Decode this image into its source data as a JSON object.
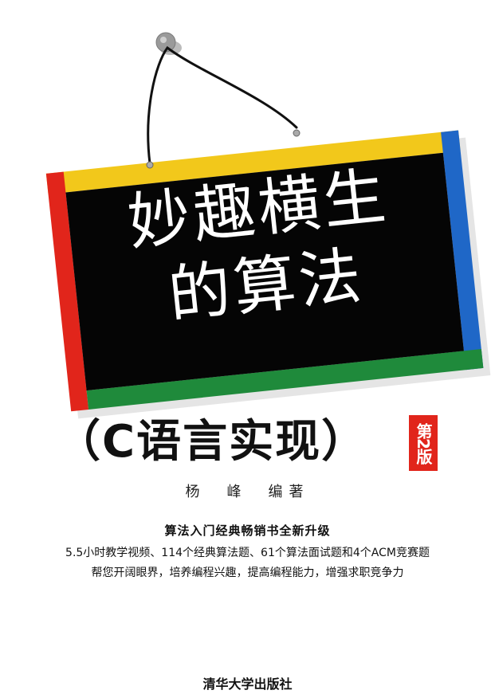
{
  "cover": {
    "board_title_line1": "妙趣横生",
    "board_title_line2": "的算法",
    "subtitle": "（C语言实现）",
    "edition": "第2版",
    "author": "杨　峰　编著",
    "tagline_1": "算法入门经典畅销书全新升级",
    "tagline_2": "5.5小时教学视频、114个经典算法题、61个算法面试题和4个ACM竞赛题",
    "tagline_3": "帮您开阔眼界，培养编程兴趣，提高编程能力，增强求职竞争力",
    "publisher": "清华大学出版社"
  },
  "colors": {
    "board": "#050505",
    "frame_top": "#f2c81b",
    "frame_left": "#e1251b",
    "frame_right": "#1f67c7",
    "frame_bottom": "#1f8a3b",
    "edition_badge": "#e1251b",
    "text": "#111111"
  }
}
